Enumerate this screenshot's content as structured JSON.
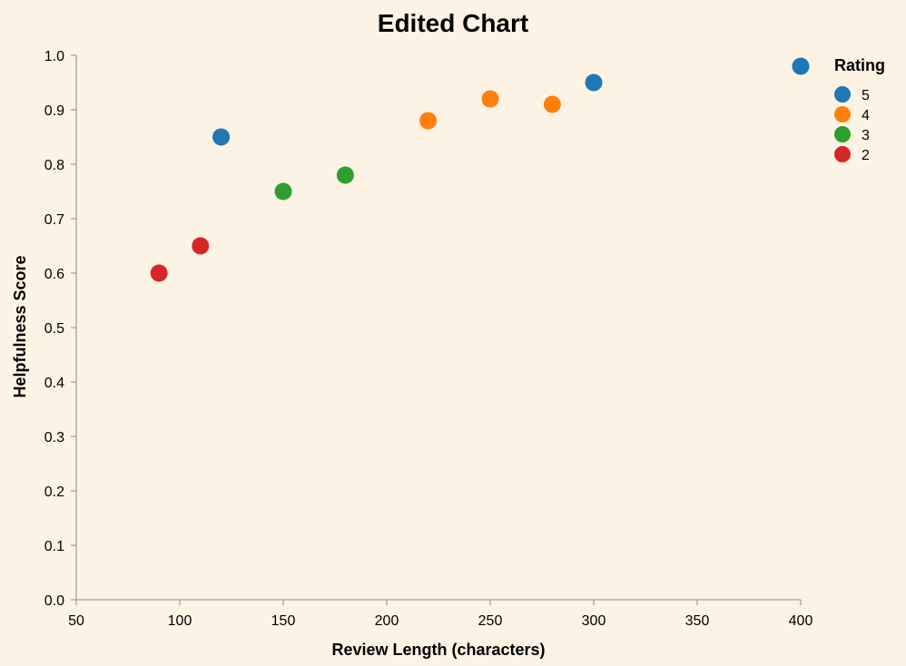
{
  "chart_data": {
    "type": "scatter",
    "title": "Edited Chart",
    "xlabel": "Review Length (characters)",
    "ylabel": "Helpfulness Score",
    "xlim": [
      50,
      400
    ],
    "ylim": [
      0.0,
      1.0
    ],
    "x_ticks": [
      "50",
      "100",
      "150",
      "200",
      "250",
      "300",
      "350",
      "400"
    ],
    "y_ticks": [
      "0.0",
      "0.1",
      "0.2",
      "0.3",
      "0.4",
      "0.5",
      "0.6",
      "0.7",
      "0.8",
      "0.9",
      "1.0"
    ],
    "grid": false,
    "legend": {
      "title": "Rating",
      "placement": "right",
      "entries": [
        {
          "label": "5",
          "color": "#1f77b4"
        },
        {
          "label": "4",
          "color": "#ff7f0e"
        },
        {
          "label": "3",
          "color": "#2ca02c"
        },
        {
          "label": "2",
          "color": "#d62728"
        }
      ]
    },
    "series": [
      {
        "name": "5",
        "color": "#1f77b4",
        "points": [
          {
            "x": 120,
            "y": 0.85
          },
          {
            "x": 300,
            "y": 0.95
          },
          {
            "x": 400,
            "y": 0.98
          }
        ]
      },
      {
        "name": "4",
        "color": "#ff7f0e",
        "points": [
          {
            "x": 220,
            "y": 0.88
          },
          {
            "x": 250,
            "y": 0.92
          },
          {
            "x": 280,
            "y": 0.91
          }
        ]
      },
      {
        "name": "3",
        "color": "#2ca02c",
        "points": [
          {
            "x": 150,
            "y": 0.75
          },
          {
            "x": 180,
            "y": 0.78
          }
        ]
      },
      {
        "name": "2",
        "color": "#d62728",
        "points": [
          {
            "x": 90,
            "y": 0.6
          },
          {
            "x": 110,
            "y": 0.65
          }
        ]
      }
    ]
  }
}
